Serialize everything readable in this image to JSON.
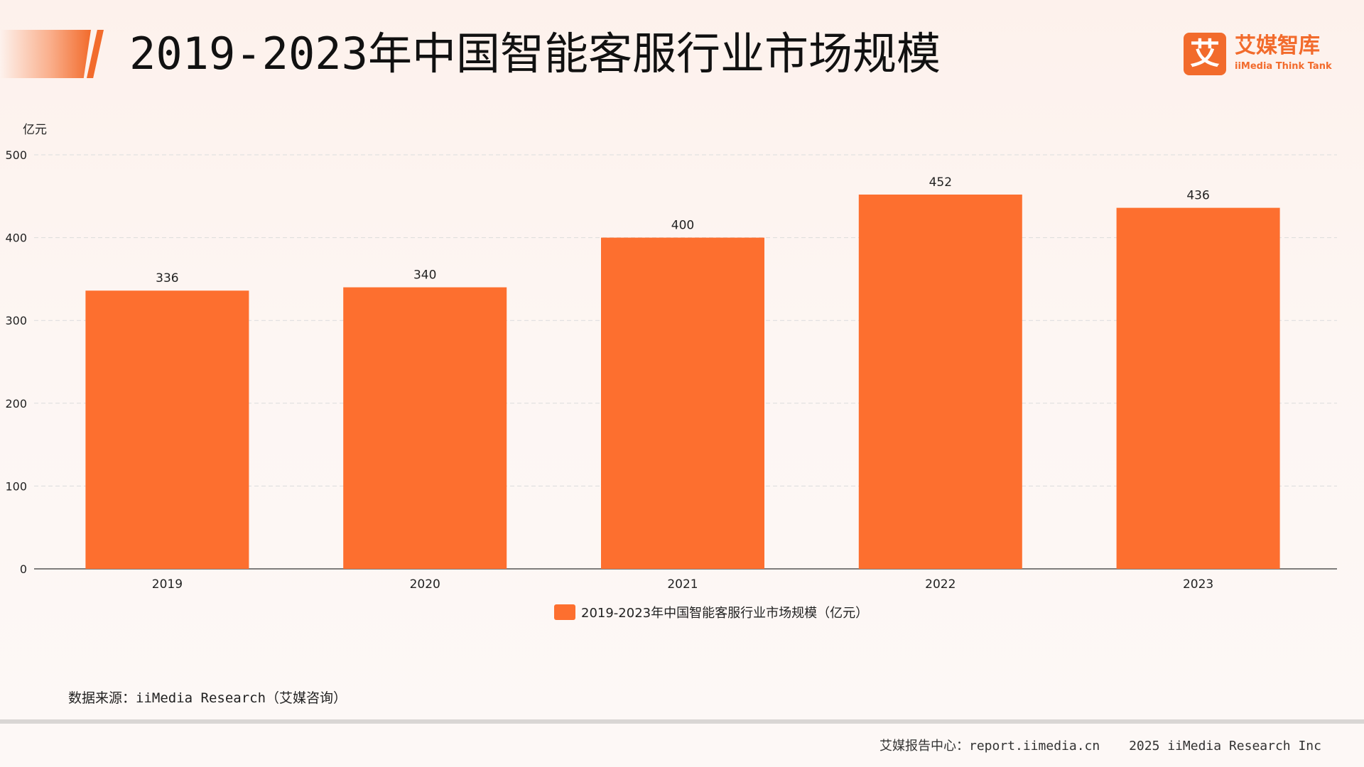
{
  "page": {
    "title": "2019-2023年中国智能客服行业市场规模"
  },
  "brand": {
    "mark_char": "艾",
    "name": "艾媒智库",
    "subtitle": "iiMedia Think Tank",
    "color": "#f26b2c"
  },
  "chart_data": {
    "type": "bar",
    "categories": [
      "2019",
      "2020",
      "2021",
      "2022",
      "2023"
    ],
    "series": [
      {
        "name": "2019-2023年中国智能客服行业市场规模（亿元）",
        "values": [
          336,
          340,
          400,
          452,
          436
        ],
        "color": "#fd6f2f"
      }
    ],
    "ylabel": "亿元",
    "ylim": [
      0,
      500
    ],
    "yticks": [
      0,
      100,
      200,
      300,
      400,
      500
    ],
    "grid": true,
    "legend_position": "bottom-center",
    "data_labels": true
  },
  "source": {
    "text": "数据来源：iiMedia Research（艾媒咨询）"
  },
  "footer": {
    "report_center": "艾媒报告中心：report.iimedia.cn",
    "copyright": "2025 iiMedia Research Inc"
  }
}
